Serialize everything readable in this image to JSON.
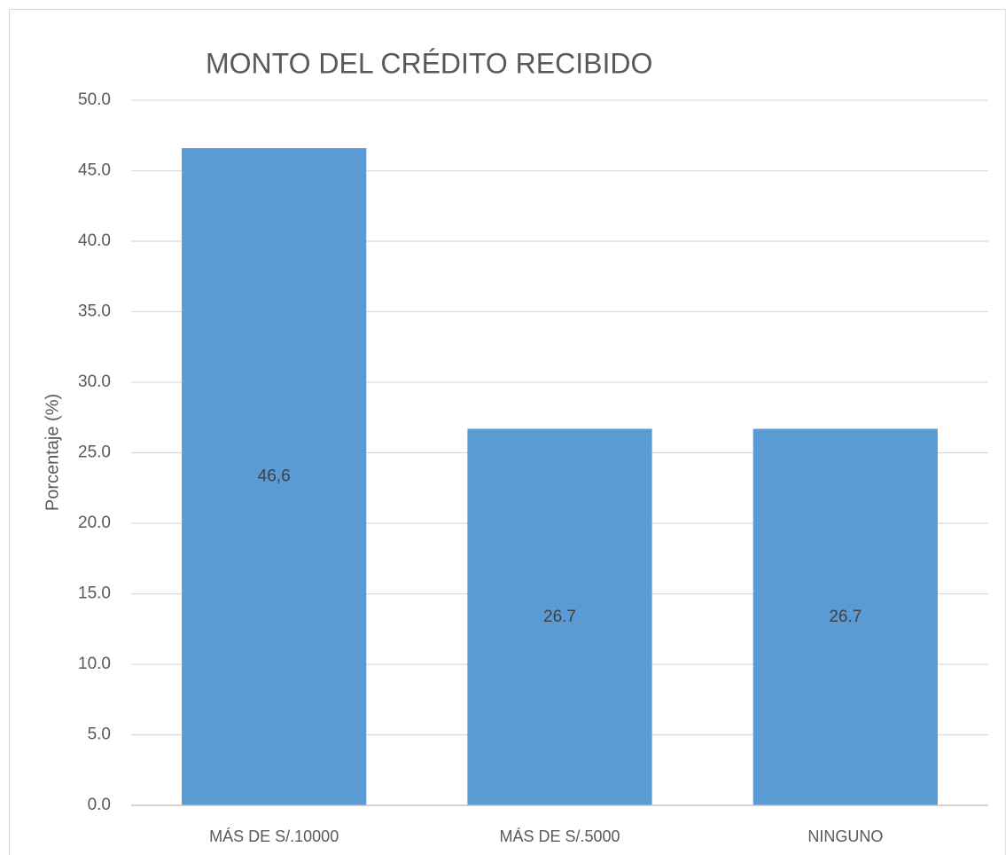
{
  "chart_data": {
    "type": "bar",
    "title": "MONTO DEL CRÉDITO RECIBIDO",
    "y_label": "Porcentaje (%)",
    "categories": [
      "MÁS DE S/.10000",
      "MÁS DE S/.5000",
      "NINGUNO"
    ],
    "values": [
      46.6,
      26.7,
      26.7
    ],
    "value_labels": [
      "46,6",
      "26.7",
      "26.7"
    ],
    "color": "#5b9bd5",
    "ylim": [
      0,
      50
    ],
    "yticks": [
      {
        "value": 0,
        "label": "0.0"
      },
      {
        "value": 5,
        "label": "5.0"
      },
      {
        "value": 10,
        "label": "10.0"
      },
      {
        "value": 15,
        "label": "15.0"
      },
      {
        "value": 20,
        "label": "20.0"
      },
      {
        "value": 25,
        "label": "25.0"
      },
      {
        "value": 30,
        "label": "30.0"
      },
      {
        "value": 35,
        "label": "35.0"
      },
      {
        "value": 40,
        "label": "40.0"
      },
      {
        "value": 45,
        "label": "45.0"
      },
      {
        "value": 50,
        "label": "50.0"
      }
    ],
    "grid": true
  }
}
